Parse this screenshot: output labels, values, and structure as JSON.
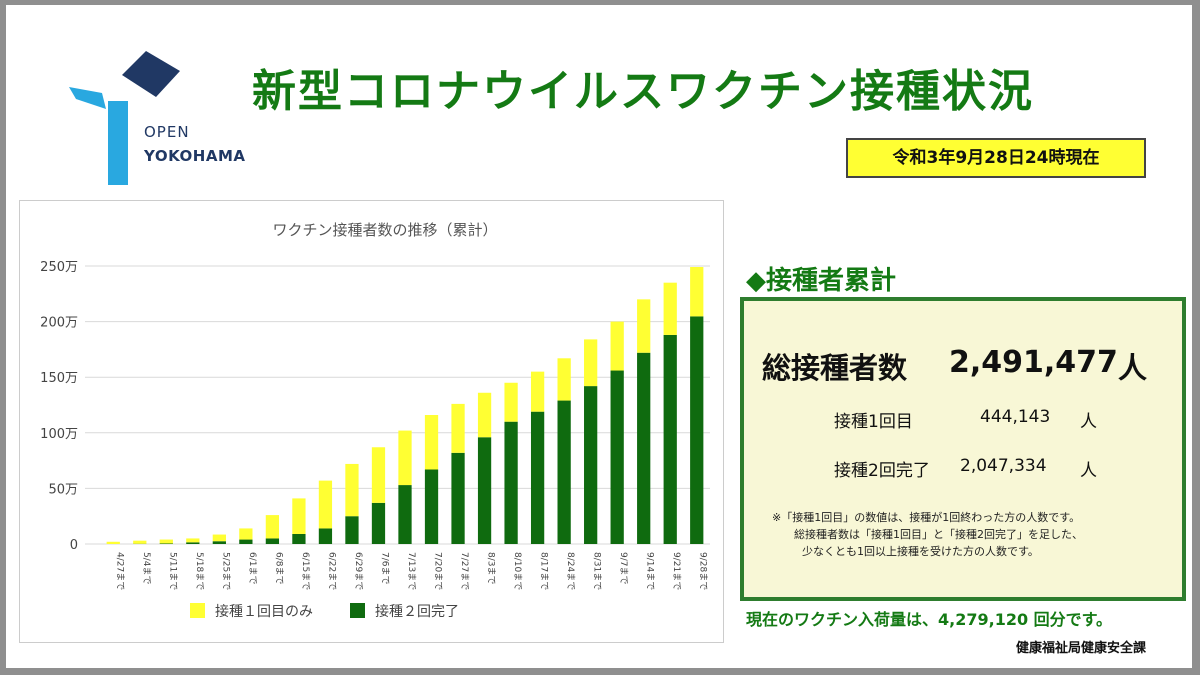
{
  "logo": {
    "line1": "OPEN",
    "line2": "YOKOHAMA"
  },
  "title": "新型コロナウイルスワクチン接種状況",
  "date": "令和3年9月28日24時現在",
  "colors": {
    "dose1": "#ffff33",
    "dose2": "#0f6b0f",
    "title": "#147a14",
    "frame": "#2e7d2e"
  },
  "chart_data": {
    "type": "bar",
    "stacked": true,
    "title": "ワクチン接種者数の推移（累計）",
    "categories": [
      "4/27まで",
      "5/4まで",
      "5/11まで",
      "5/18まで",
      "5/25まで",
      "6/1まで",
      "6/8まで",
      "6/15まで",
      "6/22まで",
      "6/29まで",
      "7/6まで",
      "7/13まで",
      "7/20まで",
      "7/27まで",
      "8/3まで",
      "8/10まで",
      "8/17まで",
      "8/24まで",
      "8/31まで",
      "9/7まで",
      "9/14まで",
      "9/21まで",
      "9/28まで"
    ],
    "series": [
      {
        "name": "接種２回完了",
        "color": "#0f6b0f",
        "values": [
          0,
          0.2,
          0.5,
          1.5,
          2.5,
          4,
          5,
          9,
          14,
          25,
          37,
          53,
          67,
          82,
          96,
          110,
          119,
          129,
          142,
          156,
          172,
          188,
          204.7
        ]
      },
      {
        "name": "接種１回目のみ",
        "color": "#ffff33",
        "values": [
          2,
          2.8,
          3.5,
          3.5,
          6,
          10,
          21,
          32,
          43,
          47,
          50,
          49,
          49,
          44,
          40,
          35,
          36,
          38,
          42,
          44,
          48,
          47,
          44.4
        ]
      }
    ],
    "yticks": [
      "0",
      "50万",
      "100万",
      "150万",
      "200万",
      "250万"
    ],
    "ylim": [
      0,
      250
    ],
    "grid": true,
    "legend": "bottom"
  },
  "summary": {
    "heading": "◆接種者累計",
    "total_label": "総接種者数",
    "total_value": "2,491,477",
    "total_unit": "人",
    "dose1_label": "接種1回目",
    "dose1_value": "444,143",
    "dose1_unit": "人",
    "dose2_label": "接種2回完了",
    "dose2_value": "2,047,334",
    "dose2_unit": "人",
    "note": [
      "※「接種1回目」の数値は、接種が1回終わった方の人数です。",
      "総接種者数は「接種1回目」と「接種2回完了」を足した、",
      "少なくとも1回以上接種を受けた方の人数です。"
    ]
  },
  "stock_text": "現在のワクチン入荷量は、4,279,120 回分です。",
  "department": "健康福祉局健康安全課"
}
